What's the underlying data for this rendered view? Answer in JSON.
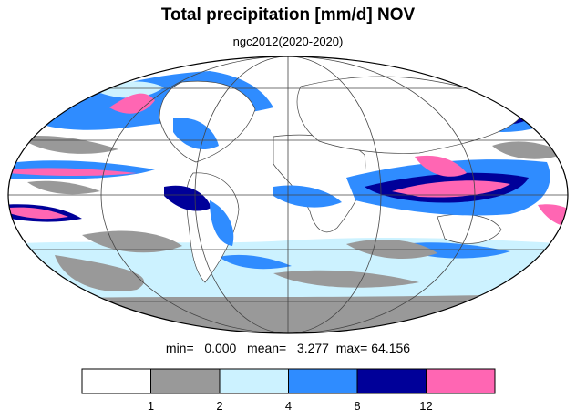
{
  "header": {
    "title": "Total precipitation [mm/d] NOV",
    "subtitle": "ngc2012(2020-2020)"
  },
  "stats": {
    "min_label": "min=",
    "min": "0.000",
    "mean_label": "mean=",
    "mean": "3.277",
    "max_label": "max=",
    "max": "64.156"
  },
  "legend": {
    "bins": [
      {
        "color": "#ffffff"
      },
      {
        "color": "#999999"
      },
      {
        "color": "#ccf2ff"
      },
      {
        "color": "#2f8cff"
      },
      {
        "color": "#000099"
      },
      {
        "color": "#ff66b3"
      }
    ],
    "tick_labels": [
      "1",
      "2",
      "4",
      "8",
      "12"
    ]
  },
  "map": {
    "projection": "mollweide",
    "graticule": true,
    "coastlines": true
  }
}
